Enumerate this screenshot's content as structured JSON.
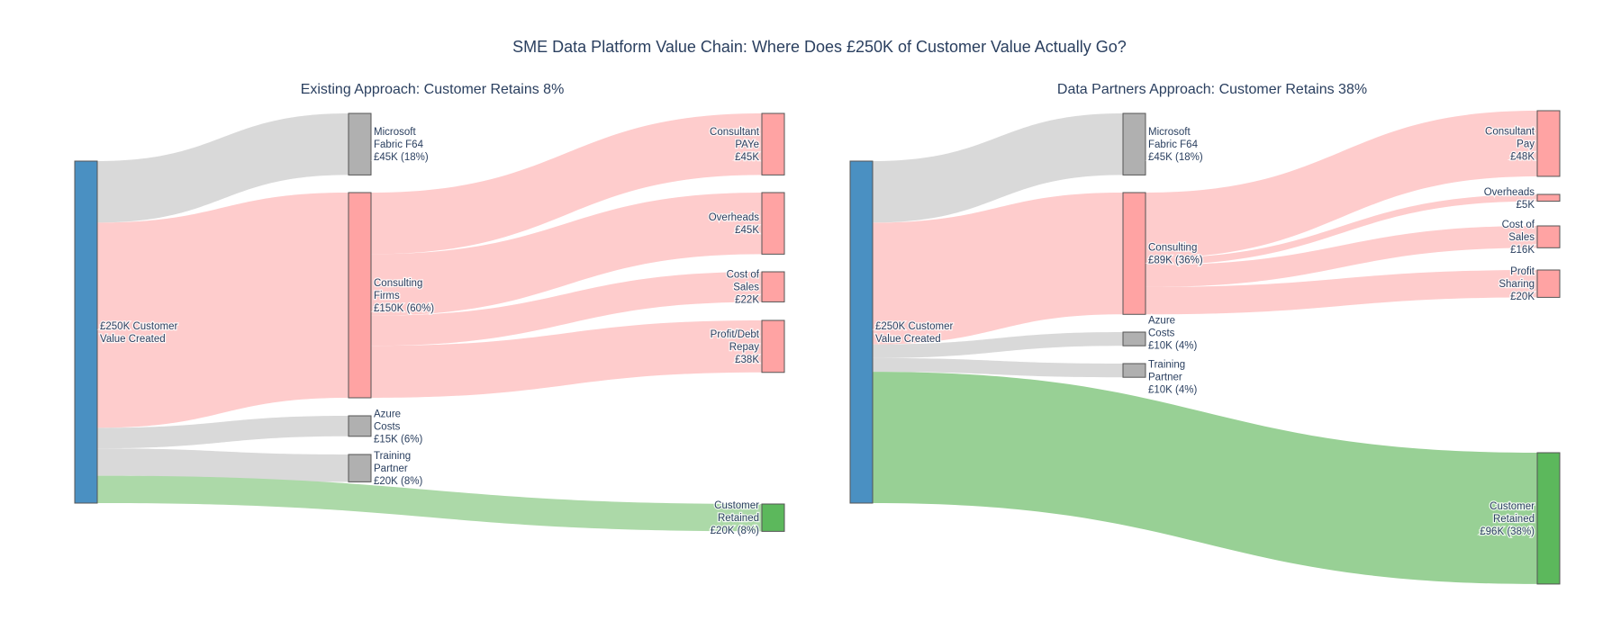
{
  "chart_data": {
    "type": "sankey",
    "title": "SME Data Platform Value Chain: Where Does £250K of Customer Value Actually Go?",
    "panels": [
      {
        "title": "Existing Approach: Customer Retains 8%",
        "nodes": [
          {
            "id": "src",
            "lines": [
              "£250K Customer",
              "Value Created"
            ],
            "value": 250,
            "color": "#4a90c2"
          },
          {
            "id": "fabric",
            "lines": [
              "Microsoft",
              "Fabric F64",
              "£45K (18%)"
            ],
            "value": 45,
            "color": "#b0b0b0"
          },
          {
            "id": "consulting",
            "lines": [
              "Consulting",
              "Firms",
              "£150K (60%)"
            ],
            "value": 150,
            "color": "#ffa3a3"
          },
          {
            "id": "azure",
            "lines": [
              "Azure",
              "Costs",
              "£15K (6%)"
            ],
            "value": 15,
            "color": "#b0b0b0"
          },
          {
            "id": "training",
            "lines": [
              "Training",
              "Partner",
              "£20K (8%)"
            ],
            "value": 20,
            "color": "#b0b0b0"
          },
          {
            "id": "pay",
            "lines": [
              "Consultant",
              "PAYe",
              "£45K"
            ],
            "value": 45,
            "color": "#ffa3a3"
          },
          {
            "id": "overheads",
            "lines": [
              "Overheads",
              "£45K"
            ],
            "value": 45,
            "color": "#ffa3a3"
          },
          {
            "id": "cos",
            "lines": [
              "Cost of",
              "Sales",
              "£22K"
            ],
            "value": 22,
            "color": "#ffa3a3"
          },
          {
            "id": "profit",
            "lines": [
              "Profit/Debt",
              "Repay",
              "£38K"
            ],
            "value": 38,
            "color": "#ffa3a3"
          },
          {
            "id": "retained",
            "lines": [
              "Customer",
              "Retained",
              "£20K (8%)"
            ],
            "value": 20,
            "color": "#5cb85c"
          }
        ],
        "links": [
          {
            "source": "src",
            "target": "fabric",
            "value": 45,
            "color": "#d9d9d9"
          },
          {
            "source": "src",
            "target": "consulting",
            "value": 150,
            "color": "#fecccc"
          },
          {
            "source": "src",
            "target": "azure",
            "value": 15,
            "color": "#d9d9d9"
          },
          {
            "source": "src",
            "target": "training",
            "value": 20,
            "color": "#d9d9d9"
          },
          {
            "source": "src",
            "target": "retained",
            "value": 20,
            "color": "#acd9a8"
          },
          {
            "source": "consulting",
            "target": "pay",
            "value": 45,
            "color": "#fecccc"
          },
          {
            "source": "consulting",
            "target": "overheads",
            "value": 45,
            "color": "#fecccc"
          },
          {
            "source": "consulting",
            "target": "cos",
            "value": 22,
            "color": "#fecccc"
          },
          {
            "source": "consulting",
            "target": "profit",
            "value": 38,
            "color": "#fecccc"
          }
        ]
      },
      {
        "title": "Data Partners Approach: Customer Retains 38%",
        "nodes": [
          {
            "id": "src",
            "lines": [
              "£250K Customer",
              "Value Created"
            ],
            "value": 250,
            "color": "#4a90c2"
          },
          {
            "id": "fabric",
            "lines": [
              "Microsoft",
              "Fabric F64",
              "£45K (18%)"
            ],
            "value": 45,
            "color": "#b0b0b0"
          },
          {
            "id": "consulting",
            "lines": [
              "Consulting",
              "£89K (36%)"
            ],
            "value": 89,
            "color": "#ffa3a3"
          },
          {
            "id": "azure",
            "lines": [
              "Azure",
              "Costs",
              "£10K (4%)"
            ],
            "value": 10,
            "color": "#b0b0b0"
          },
          {
            "id": "training",
            "lines": [
              "Training",
              "Partner",
              "£10K (4%)"
            ],
            "value": 10,
            "color": "#b0b0b0"
          },
          {
            "id": "pay",
            "lines": [
              "Consultant",
              "Pay",
              "£48K"
            ],
            "value": 48,
            "color": "#ffa3a3"
          },
          {
            "id": "overheads",
            "lines": [
              "Overheads",
              "£5K"
            ],
            "value": 5,
            "color": "#ffa3a3"
          },
          {
            "id": "cos",
            "lines": [
              "Cost of",
              "Sales",
              "£16K"
            ],
            "value": 16,
            "color": "#ffa3a3"
          },
          {
            "id": "profit",
            "lines": [
              "Profit",
              "Sharing",
              "£20K"
            ],
            "value": 20,
            "color": "#ffa3a3"
          },
          {
            "id": "retained",
            "lines": [
              "Customer",
              "Retained",
              "£96K (38%)"
            ],
            "value": 96,
            "color": "#5cb85c"
          }
        ],
        "links": [
          {
            "source": "src",
            "target": "fabric",
            "value": 45,
            "color": "#d9d9d9"
          },
          {
            "source": "src",
            "target": "consulting",
            "value": 89,
            "color": "#fecccc"
          },
          {
            "source": "src",
            "target": "azure",
            "value": 10,
            "color": "#d9d9d9"
          },
          {
            "source": "src",
            "target": "training",
            "value": 10,
            "color": "#d9d9d9"
          },
          {
            "source": "src",
            "target": "retained",
            "value": 96,
            "color": "#98d095"
          },
          {
            "source": "consulting",
            "target": "pay",
            "value": 48,
            "color": "#fecccc"
          },
          {
            "source": "consulting",
            "target": "overheads",
            "value": 5,
            "color": "#fecccc"
          },
          {
            "source": "consulting",
            "target": "cos",
            "value": 16,
            "color": "#fecccc"
          },
          {
            "source": "consulting",
            "target": "profit",
            "value": 20,
            "color": "#fecccc"
          }
        ]
      }
    ]
  }
}
